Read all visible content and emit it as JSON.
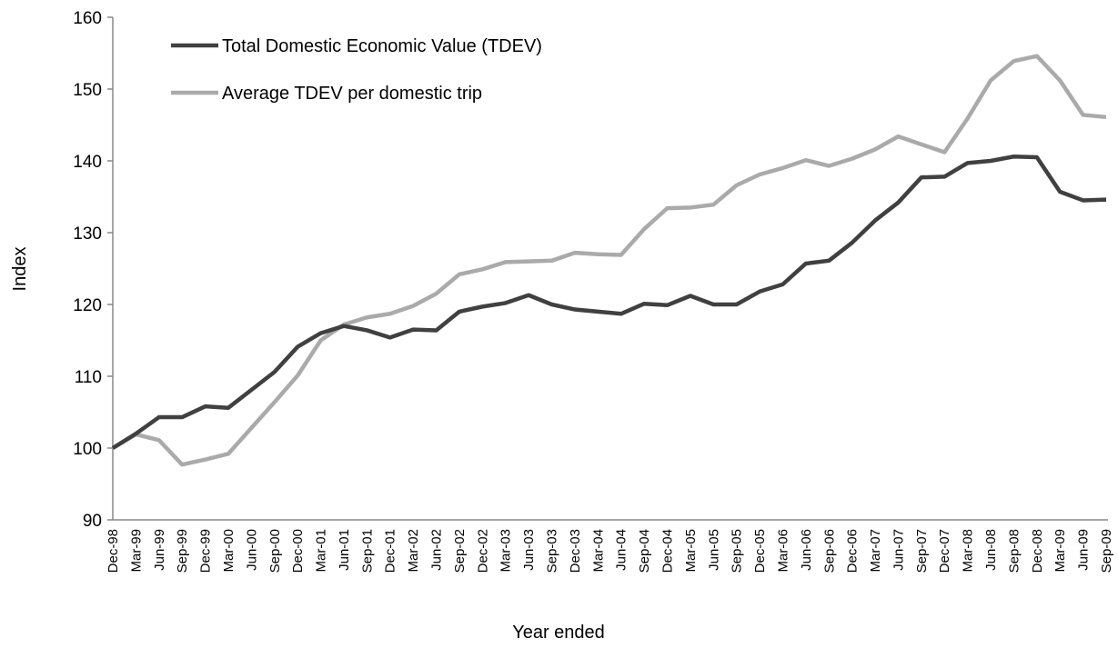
{
  "chart_data": {
    "type": "line",
    "xlabel": "Year ended",
    "ylabel": "Index",
    "categories": [
      "Dec-98",
      "Mar-99",
      "Jun-99",
      "Sep-99",
      "Dec-99",
      "Mar-00",
      "Jun-00",
      "Sep-00",
      "Dec-00",
      "Mar-01",
      "Jun-01",
      "Sep-01",
      "Dec-01",
      "Mar-02",
      "Jun-02",
      "Sep-02",
      "Dec-02",
      "Mar-03",
      "Jun-03",
      "Sep-03",
      "Dec-03",
      "Mar-04",
      "Jun-04",
      "Sep-04",
      "Dec-04",
      "Mar-05",
      "Jun-05",
      "Sep-05",
      "Dec-05",
      "Mar-06",
      "Jun-06",
      "Sep-06",
      "Dec-06",
      "Mar-07",
      "Jun-07",
      "Sep-07",
      "Dec-07",
      "Mar-08",
      "Jun-08",
      "Sep-08",
      "Dec-08",
      "Mar-09",
      "Jun-09",
      "Sep-09"
    ],
    "series": [
      {
        "name": "Total Domestic Economic Value (TDEV)",
        "color": "#404040",
        "values": [
          100,
          102,
          104.3,
          104.3,
          105.8,
          105.6,
          108.1,
          110.6,
          114.1,
          116,
          117,
          116.4,
          115.4,
          116.5,
          116.4,
          119,
          119.7,
          120.2,
          121.3,
          120,
          119.3,
          119,
          118.7,
          120.1,
          119.9,
          121.2,
          120,
          120,
          121.8,
          122.8,
          125.7,
          126.1,
          128.6,
          131.7,
          134.2,
          137.7,
          137.8,
          139.7,
          140,
          140.6,
          140.5,
          135.7,
          134.5,
          134.6
        ]
      },
      {
        "name": "Average TDEV per domestic trip",
        "color": "#aaaaaa",
        "values": [
          100,
          101.9,
          101.1,
          97.7,
          98.4,
          99.2,
          102.8,
          106.4,
          110.1,
          115,
          117.2,
          118.2,
          118.7,
          119.8,
          121.5,
          124.2,
          124.9,
          125.9,
          126,
          126.1,
          127.2,
          127,
          126.9,
          130.5,
          133.4,
          133.5,
          133.9,
          136.6,
          138.1,
          139,
          140.1,
          139.3,
          140.3,
          141.6,
          143.4,
          142.3,
          141.2,
          145.9,
          151.2,
          153.9,
          154.6,
          151.2,
          146.4,
          146.1
        ]
      }
    ],
    "ylim": [
      90,
      160
    ],
    "yticks": [
      90,
      100,
      110,
      120,
      130,
      140,
      150,
      160
    ],
    "grid": false,
    "legend": "upper left"
  }
}
